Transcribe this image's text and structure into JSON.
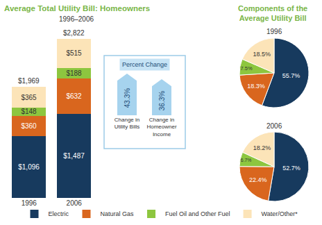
{
  "chart_data": [
    {
      "type": "bar",
      "title": "Average Total Utility Bill: Homeowners",
      "subtitle": "1996–2006",
      "stacked": true,
      "data_labels": true,
      "tick_labels": "x",
      "legend": "bottom",
      "categories": [
        "1996",
        "2006"
      ],
      "series": [
        {
          "name": "Electric",
          "color": "#173a5e",
          "values": [
            1096,
            1487
          ],
          "value_labels": [
            "$1,096",
            "$1,487"
          ]
        },
        {
          "name": "Natural Gas",
          "color": "#d9661e",
          "values": [
            360,
            632
          ],
          "value_labels": [
            "$360",
            "$632"
          ]
        },
        {
          "name": "Fuel Oil and Other Fuel",
          "color": "#8dc63f",
          "values": [
            148,
            188
          ],
          "value_labels": [
            "$148",
            "$188"
          ]
        },
        {
          "name": "Water/Other*",
          "color": "#fce4b8",
          "values": [
            365,
            515
          ],
          "value_labels": [
            "$365",
            "$515"
          ]
        }
      ],
      "totals": [
        1969,
        2822
      ],
      "total_labels": [
        "$1,969",
        "$2,822"
      ]
    },
    {
      "type": "bar",
      "title": "Percent Change",
      "data_labels": true,
      "tick_labels": "x",
      "categories": [
        "Change in Utility Bills",
        "Change in Homeowner Income"
      ],
      "values": [
        43.3,
        36.3
      ],
      "value_labels": [
        "43.3%",
        "36.3%"
      ],
      "color": "#a6d3ee"
    },
    {
      "type": "pie",
      "title": "Components of the Average Utility Bill",
      "data_labels": true,
      "categories": [
        "Electric",
        "Natural Gas",
        "Fuel Oil and Other Fuel",
        "Water/Other*"
      ],
      "colors": [
        "#173a5e",
        "#d9661e",
        "#8dc63f",
        "#fce4b8"
      ],
      "series": [
        {
          "name": "1996",
          "values": [
            55.7,
            18.3,
            7.5,
            18.5
          ],
          "value_labels": [
            "55.7%",
            "18.3%",
            "7.5%",
            "18.5%"
          ]
        },
        {
          "name": "2006",
          "values": [
            52.7,
            22.4,
            6.7,
            18.2
          ],
          "value_labels": [
            "52.7%",
            "22.4%",
            "6.7%",
            "18.2%"
          ]
        }
      ]
    }
  ]
}
